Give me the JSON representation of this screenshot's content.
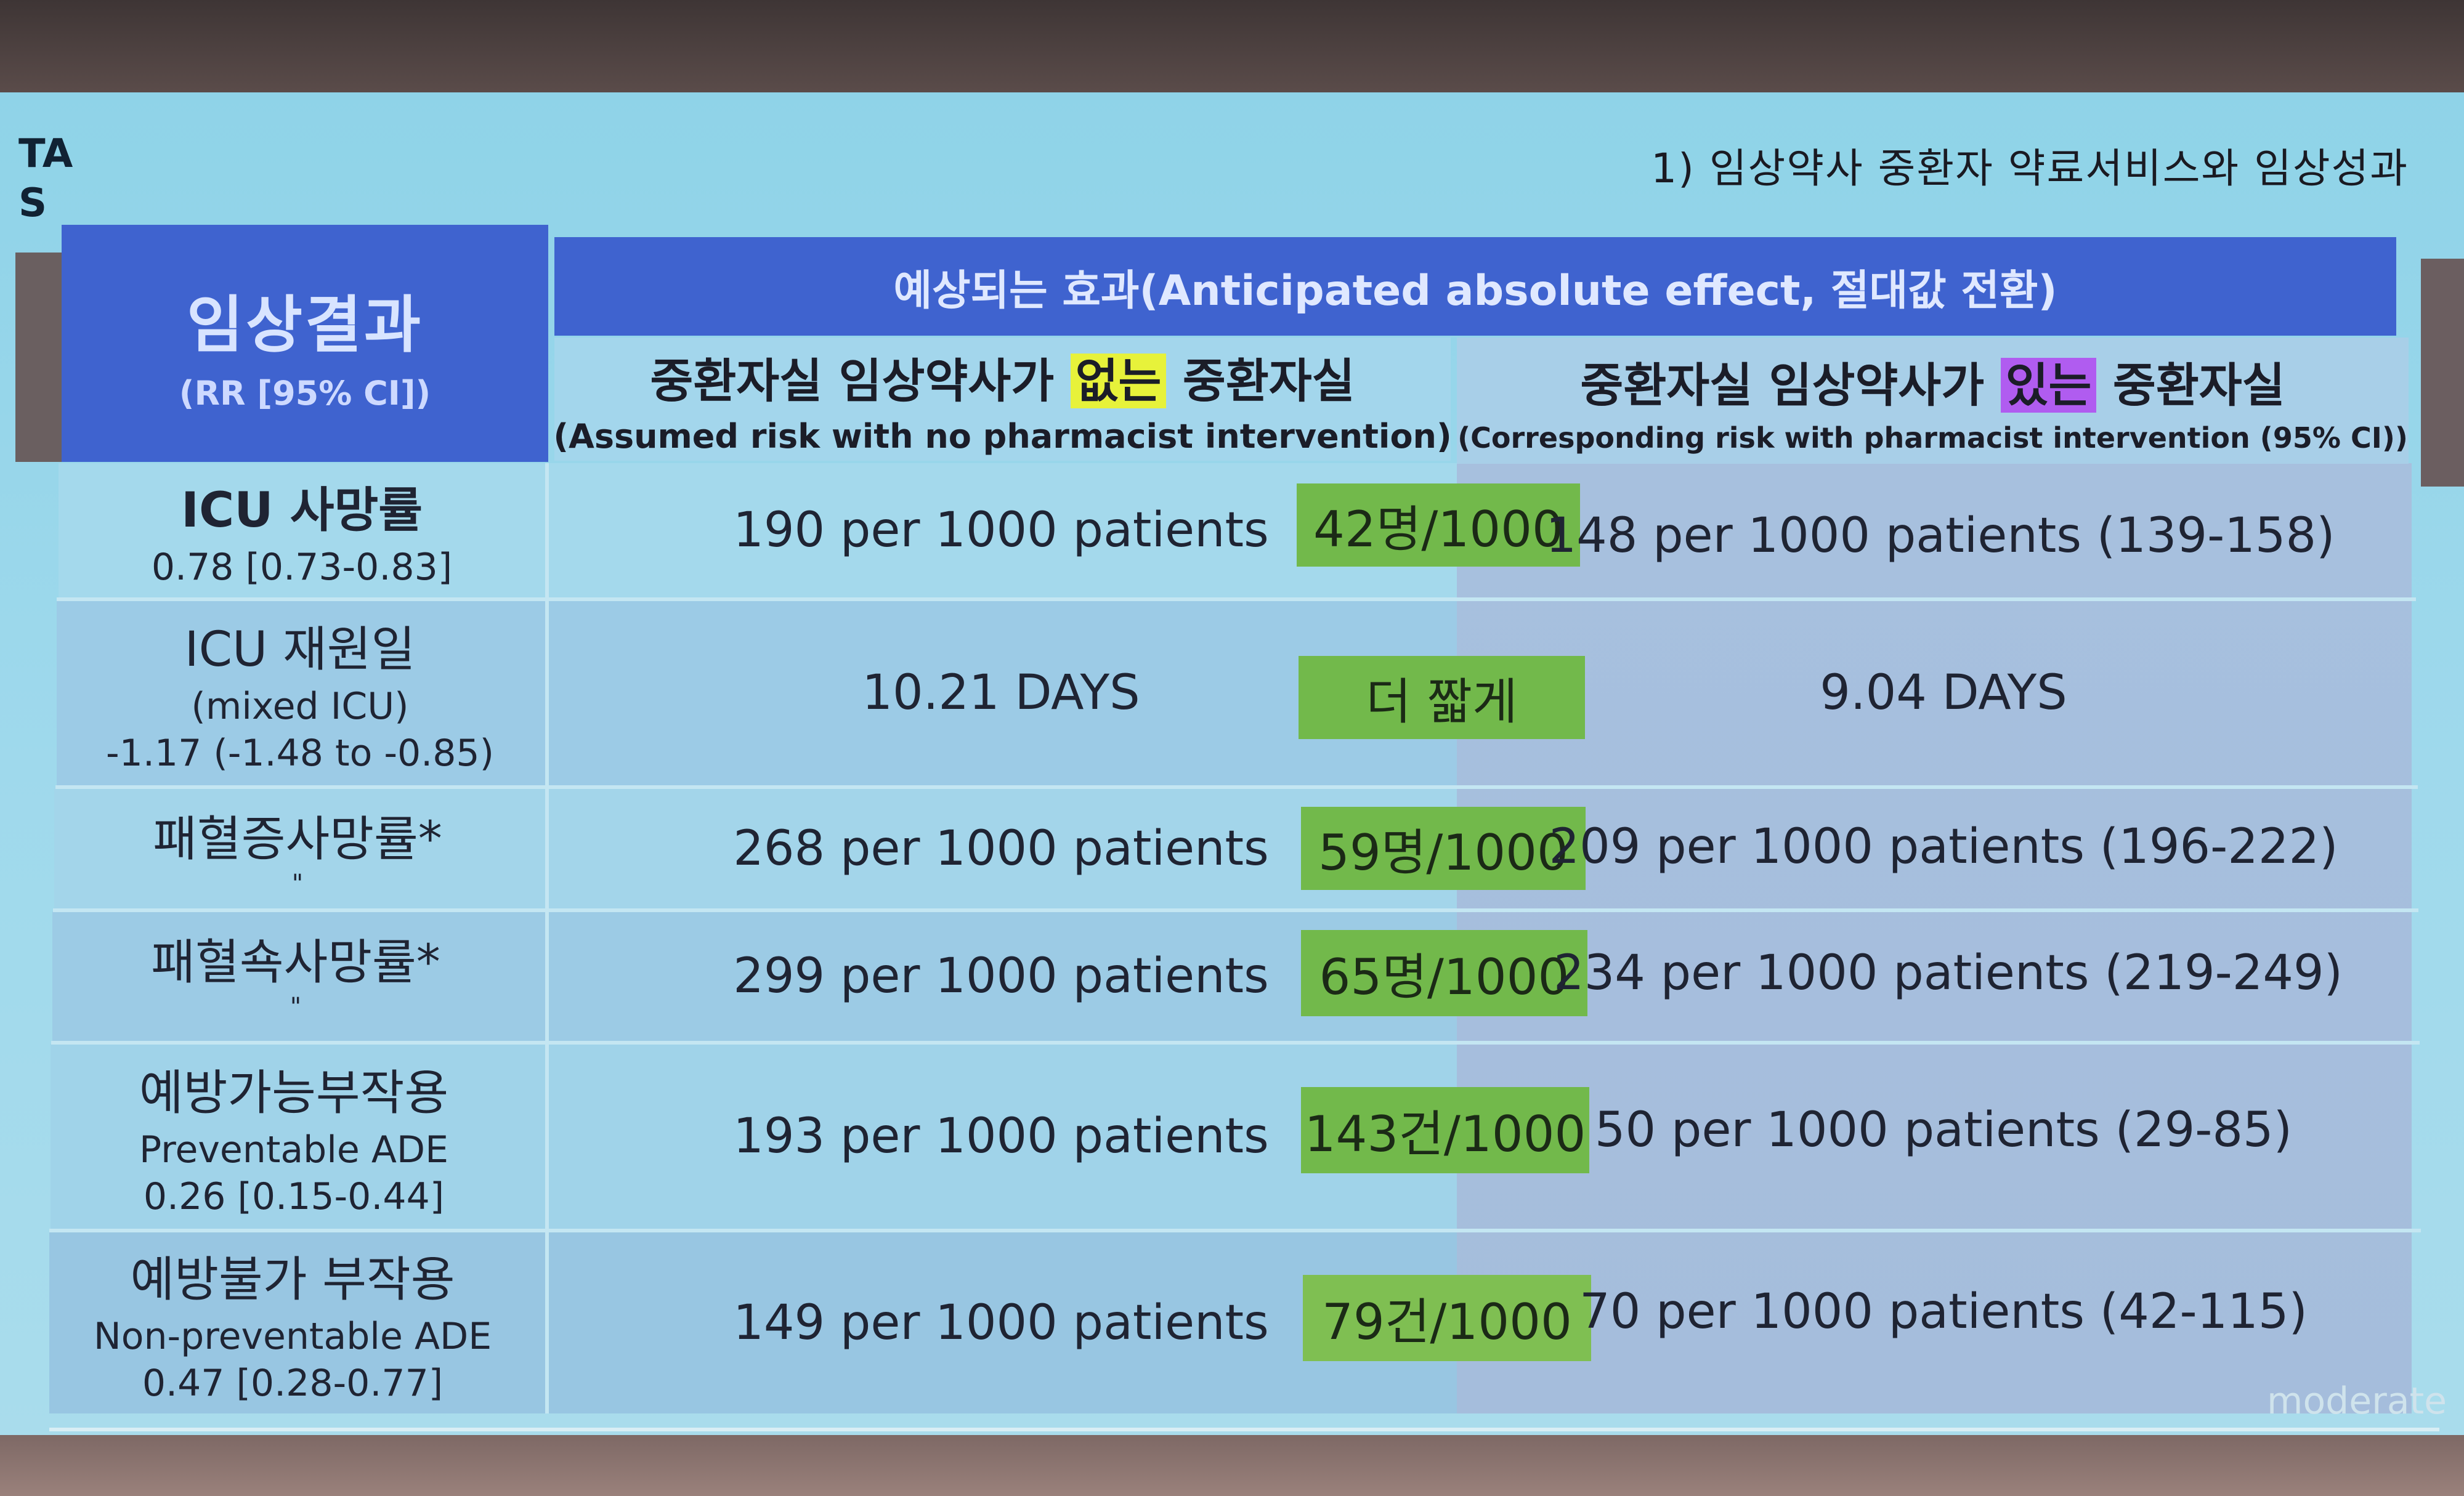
{
  "slide_title": "1) 임상약사 중환자 약료서비스와 임상성과",
  "left_fragment": [
    "TA",
    "S"
  ],
  "header": {
    "outcome_title": "임상결과",
    "outcome_subtitle": "(RR [95% CI])",
    "effect_title": "예상되는 효과(Anticipated absolute effect, 절대값 전환)",
    "without": {
      "ko_before": "중환자실 임상약사가 ",
      "ko_highlight": "없는",
      "ko_after": " 중환자실",
      "en": "(Assumed risk with no pharmacist intervention)"
    },
    "with": {
      "ko_before": "중환자실 임상약사가 ",
      "ko_highlight": "있는",
      "ko_after": " 중환자실",
      "en": "(Corresponding risk with pharmacist intervention (95% CI))"
    }
  },
  "rows": [
    {
      "label1": "ICU 사망률",
      "label2": "0.78 [0.73-0.83]",
      "label3": "",
      "without": "190 per 1000 patients",
      "diff": "42명/1000",
      "with": "148 per 1000 patients (139-158)"
    },
    {
      "label1": "ICU 재원일",
      "label2": "(mixed ICU)",
      "label3": "-1.17 (-1.48 to -0.85)",
      "without": "10.21 DAYS",
      "diff": "더 짧게",
      "with": "9.04 DAYS"
    },
    {
      "label1": "패혈증사망률*",
      "label2": "\"",
      "label3": "",
      "without": "268 per 1000 patients",
      "diff": "59명/1000",
      "with": "209 per 1000 patients (196-222)"
    },
    {
      "label1": "패혈쇽사망률*",
      "label2": "\"",
      "label3": "",
      "without": "299 per 1000 patients",
      "diff": "65명/1000",
      "with": "234 per 1000 patients (219-249)"
    },
    {
      "label1": "예방가능부작용",
      "label2": "Preventable ADE",
      "label3": "0.26 [0.15-0.44]",
      "without": "193 per 1000 patients",
      "diff": "143건/1000",
      "with": "50 per 1000 patients (29-85)"
    },
    {
      "label1": "예방불가 부작용",
      "label2": "Non-preventable ADE",
      "label3": "0.47 [0.28-0.77]",
      "without": "149 per 1000 patients",
      "diff": "79건/1000",
      "with": "70 per 1000 patients (42-115)"
    }
  ],
  "footer_fragment": "moderate",
  "colors": {
    "header_blue": "#3f63cf",
    "badge_green": "#72b94b",
    "highlight_yellow": "#e7f23a",
    "highlight_purple": "#b05cf0"
  }
}
